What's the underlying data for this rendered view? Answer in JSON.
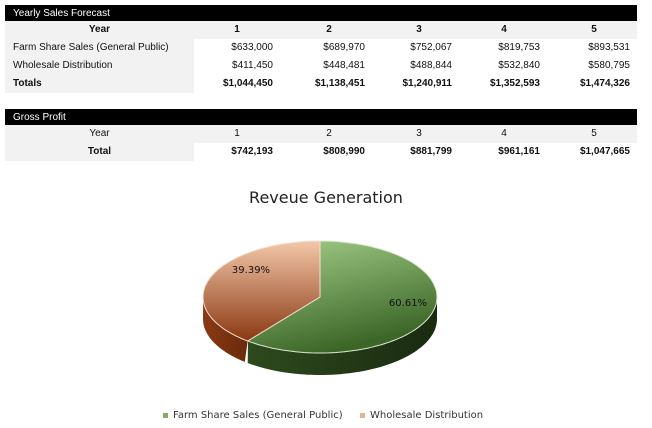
{
  "sales": {
    "title": "Yearly Sales Forecast",
    "year_label": "Year",
    "years": [
      "1",
      "2",
      "3",
      "4",
      "5"
    ],
    "rows": [
      {
        "label": "Farm Share Sales (General Public)",
        "values": [
          "$633,000",
          "$689,970",
          "$752,067",
          "$819,753",
          "$893,531"
        ]
      },
      {
        "label": "Wholesale Distribution",
        "values": [
          "$411,450",
          "$448,481",
          "$488,844",
          "$532,840",
          "$580,795"
        ]
      },
      {
        "label": "Totals",
        "values": [
          "$1,044,450",
          "$1,138,451",
          "$1,240,911",
          "$1,352,593",
          "$1,474,326"
        ]
      }
    ]
  },
  "profit": {
    "title": "Gross Profit",
    "year_label": "Year",
    "years": [
      "1",
      "2",
      "3",
      "4",
      "5"
    ],
    "total_label": "Total",
    "totals": [
      "$742,193",
      "$808,990",
      "$881,799",
      "$961,161",
      "$1,047,665"
    ]
  },
  "chart_data": {
    "type": "pie",
    "style": "3d",
    "title": "Reveue Generation",
    "categories": [
      "Farm Share Sales (General Public)",
      "Wholesale Distribution"
    ],
    "values": [
      60.61,
      39.39
    ],
    "data_labels": [
      "60.61%",
      "39.39%"
    ],
    "colors": [
      "#7fae5f",
      "#d99a72"
    ],
    "legend": "bottom"
  }
}
